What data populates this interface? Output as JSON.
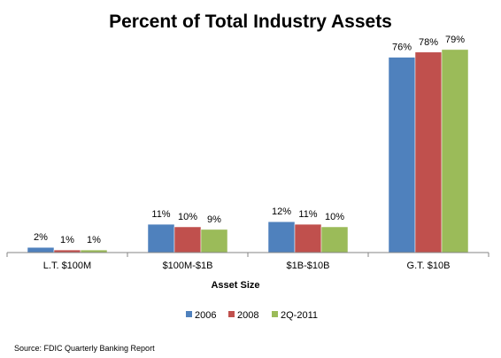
{
  "chart_data": {
    "type": "bar",
    "title": "Percent of Total Industry Assets",
    "xlabel": "Asset Size",
    "ylabel": "",
    "ylim": [
      0,
      100
    ],
    "grid": false,
    "legend_position": "bottom",
    "categories": [
      "L.T. $100M",
      "$100M-$1B",
      "$1B-$10B",
      "G.T. $10B"
    ],
    "series": [
      {
        "name": "2006",
        "color": "#4F81BD",
        "values": [
          2,
          11,
          12,
          76
        ],
        "labels": [
          "2%",
          "11%",
          "12%",
          "76%"
        ]
      },
      {
        "name": "2008",
        "color": "#C0504D",
        "values": [
          1,
          10,
          11,
          78
        ],
        "labels": [
          "1%",
          "10%",
          "11%",
          "78%"
        ]
      },
      {
        "name": "2Q-2011",
        "color": "#9BBB59",
        "values": [
          1,
          9,
          10,
          79
        ],
        "labels": [
          "1%",
          "9%",
          "10%",
          "79%"
        ]
      }
    ]
  },
  "source": "Source: FDIC Quarterly Banking Report"
}
